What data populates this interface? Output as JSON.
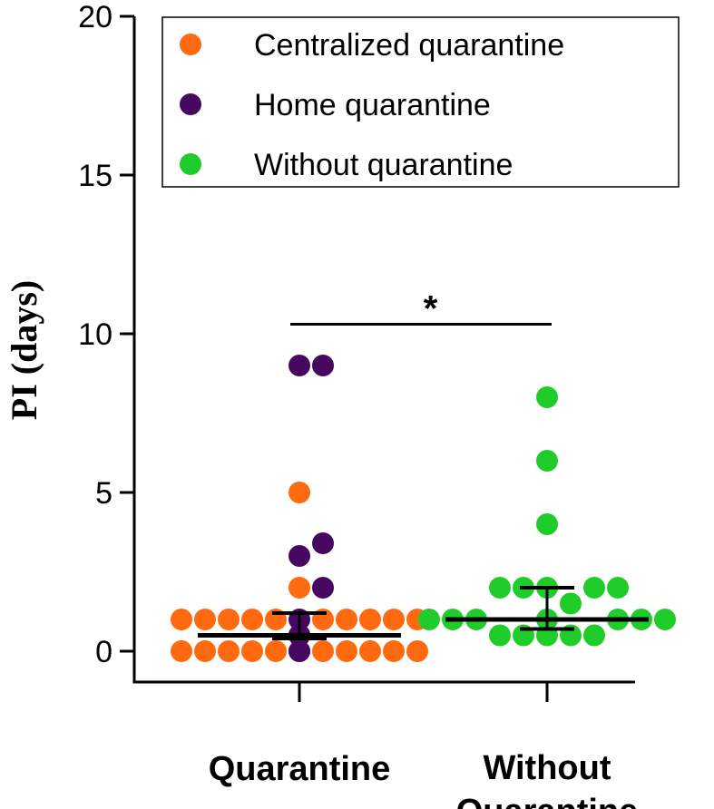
{
  "chart_data": {
    "type": "scatter",
    "title": "",
    "ylabel": "PI (days)",
    "xlabel": "",
    "ylim": [
      0,
      20
    ],
    "yticks": [
      0,
      5,
      10,
      15,
      20
    ],
    "categories": [
      "Quarantine",
      "Without Quarantine"
    ],
    "category_labels": [
      [
        "Quarantine"
      ],
      [
        "Without",
        "Quarantine"
      ]
    ],
    "series": [
      {
        "name": "Centralized quarantine",
        "color": "#FF6A10",
        "category": "Quarantine",
        "values": [
          0,
          0,
          0,
          0,
          0,
          0,
          0,
          0,
          0,
          0,
          0,
          0,
          0.5,
          0.5,
          0.5,
          0.5,
          0.5,
          0.5,
          0.5,
          0.5,
          0.5,
          1,
          1,
          1,
          1,
          1,
          1,
          1,
          1,
          1,
          1,
          2,
          5
        ]
      },
      {
        "name": "Home quarantine",
        "color": "#45085E",
        "category": "Quarantine",
        "values": [
          0,
          0.5,
          0.5,
          0.5,
          1,
          2,
          3,
          3.4,
          9,
          9
        ]
      },
      {
        "name": "Without quarantine",
        "color": "#1FCC2A",
        "category": "Without Quarantine",
        "values": [
          0.5,
          0.5,
          0.5,
          0.5,
          0.5,
          1,
          1,
          1,
          1,
          1,
          1,
          1,
          1.5,
          2,
          2,
          2,
          2,
          2,
          4,
          6,
          8
        ]
      }
    ],
    "summary_lines": [
      {
        "category": "Quarantine",
        "median": 0.5,
        "q1": 0.4,
        "q3": 1.2
      },
      {
        "category": "Without Quarantine",
        "median": 1,
        "q1": 0.7,
        "q3": 2
      }
    ],
    "significance": {
      "from": "Quarantine",
      "to": "Without Quarantine",
      "y": 10.3,
      "label": "*"
    },
    "legend": {
      "position": "top-right",
      "entries": [
        "Centralized quarantine",
        "Home quarantine",
        "Without quarantine"
      ]
    },
    "grid": false
  }
}
